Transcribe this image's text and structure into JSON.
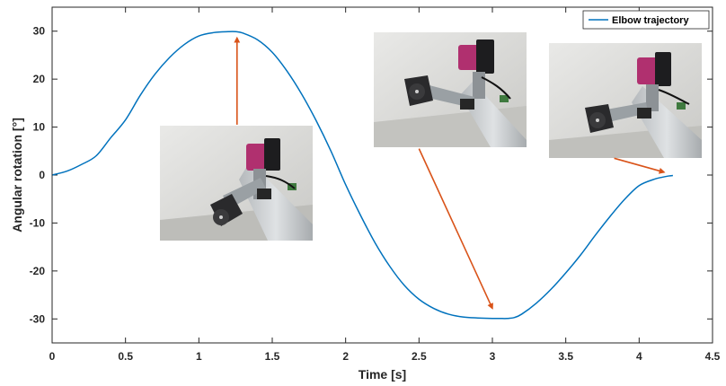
{
  "chart_data": {
    "type": "line",
    "title": "",
    "xlabel": "Time [s]",
    "ylabel": "Angular rotation [°]",
    "xlim": [
      0,
      4.5
    ],
    "ylim": [
      -35,
      35
    ],
    "xticks": [
      0,
      0.5,
      1,
      1.5,
      2,
      2.5,
      3,
      3.5,
      4,
      4.5
    ],
    "xtick_labels": [
      "0",
      "0.5",
      "1",
      "1.5",
      "2",
      "2.5",
      "3",
      "3.5",
      "4",
      "4.5"
    ],
    "yticks": [
      30,
      20,
      10,
      0,
      -10,
      -20,
      -30
    ],
    "ytick_labels": [
      "30",
      "20",
      "10",
      "0",
      "-10",
      "-20",
      "-30"
    ],
    "grid": false,
    "legend_position": "top-right",
    "series": [
      {
        "name": "Elbow trajectory",
        "color": "#0072BD",
        "x": [
          0,
          0.1,
          0.2,
          0.3,
          0.4,
          0.5,
          0.6,
          0.7,
          0.8,
          0.9,
          1.0,
          1.1,
          1.2,
          1.25,
          1.3,
          1.4,
          1.5,
          1.6,
          1.7,
          1.8,
          1.9,
          2.0,
          2.1,
          2.2,
          2.3,
          2.4,
          2.5,
          2.6,
          2.7,
          2.8,
          2.9,
          3.0,
          3.05,
          3.1,
          3.15,
          3.2,
          3.3,
          3.4,
          3.5,
          3.6,
          3.7,
          3.8,
          3.9,
          4.0,
          4.1,
          4.15,
          4.2,
          4.23
        ],
        "y": [
          0,
          0.8,
          2.2,
          4.0,
          7.8,
          11.5,
          16.6,
          21.0,
          24.5,
          27.2,
          29.0,
          29.7,
          29.9,
          29.9,
          29.6,
          28.2,
          25.6,
          21.7,
          16.9,
          11.3,
          5.0,
          -2.0,
          -8.3,
          -14.1,
          -19.0,
          -23.0,
          -25.9,
          -27.8,
          -29.0,
          -29.6,
          -29.8,
          -29.9,
          -29.9,
          -29.9,
          -29.7,
          -29.0,
          -26.7,
          -23.8,
          -20.4,
          -16.7,
          -12.6,
          -8.7,
          -5.1,
          -2.2,
          -0.9,
          -0.5,
          -0.2,
          -0.1
        ]
      }
    ],
    "annotations": [
      {
        "type": "arrow",
        "color": "#D95319",
        "from": [
          1.26,
          10.5
        ],
        "to": [
          1.26,
          28.6
        ]
      },
      {
        "type": "arrow",
        "color": "#D95319",
        "from": [
          2.5,
          5.5
        ],
        "to": [
          3.0,
          -27.8
        ]
      },
      {
        "type": "arrow",
        "color": "#D95319",
        "from": [
          3.83,
          3.5
        ],
        "to": [
          4.17,
          0.6
        ]
      }
    ]
  },
  "insets": [
    {
      "name": "robot-photo-peak",
      "description": "robot-arm-elbow-flexed"
    },
    {
      "name": "robot-photo-trough",
      "description": "robot-arm-elbow-extended"
    },
    {
      "name": "robot-photo-end",
      "description": "robot-arm-elbow-neutral"
    }
  ]
}
